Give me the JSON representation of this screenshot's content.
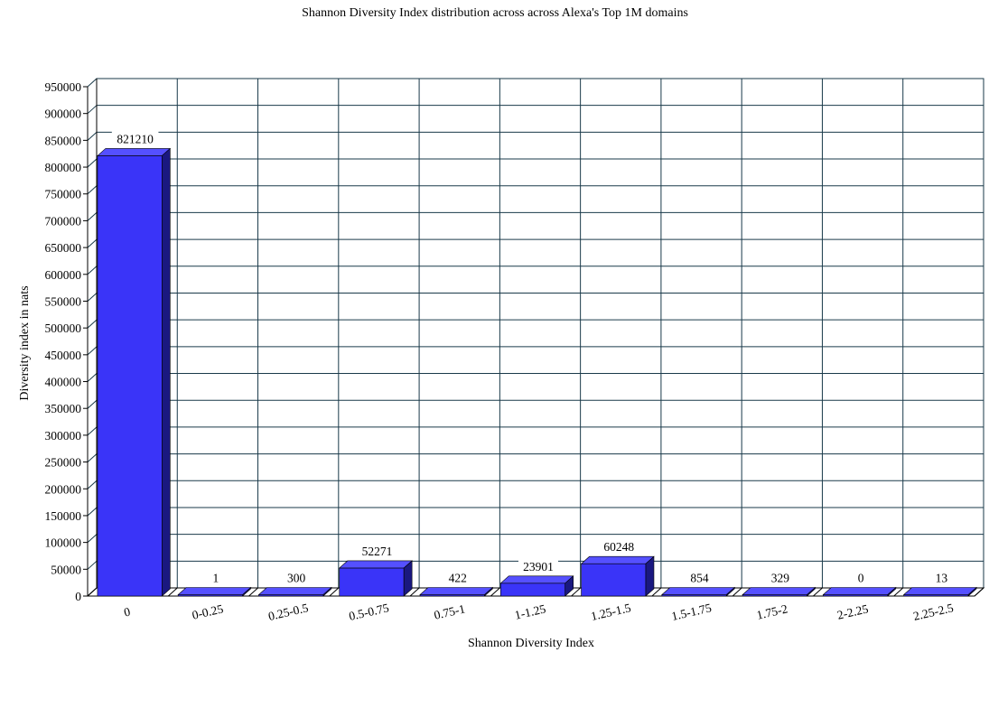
{
  "chart_data": {
    "type": "bar",
    "title": "Shannon Diversity Index distribution across across Alexa's Top 1M domains",
    "xlabel": "Shannon Diversity Index",
    "ylabel": "Diversity index in nats",
    "categories": [
      "0",
      "0-0.25",
      "0.25-0.5",
      "0.5-0.75",
      "0.75-1",
      "1-1.25",
      "1.25-1.5",
      "1.5-1.75",
      "1.75-2",
      "2-2.25",
      "2.25-2.5"
    ],
    "values": [
      821210,
      1,
      300,
      52271,
      422,
      23901,
      60248,
      854,
      329,
      0,
      13
    ],
    "value_labels": [
      "821210",
      "1",
      "300",
      "52271",
      "422",
      "23901",
      "60248",
      "854",
      "329",
      "0",
      "13"
    ],
    "ylim": [
      0,
      950000
    ],
    "yticks": [
      0,
      50000,
      100000,
      150000,
      200000,
      250000,
      300000,
      350000,
      400000,
      450000,
      500000,
      550000,
      600000,
      650000,
      700000,
      750000,
      800000,
      850000,
      900000,
      950000
    ],
    "ytick_labels": [
      "0",
      "50000",
      "100000",
      "150000",
      "200000",
      "250000",
      "300000",
      "350000",
      "400000",
      "450000",
      "500000",
      "550000",
      "600000",
      "650000",
      "700000",
      "750000",
      "800000",
      "850000",
      "900000",
      "950000"
    ],
    "grid": true,
    "legend": "none",
    "colors": {
      "bar_front": "#3a34f8",
      "bar_side": "#1a1880",
      "bar_top": "#5550ff",
      "grid": "#1a3a4a"
    }
  }
}
